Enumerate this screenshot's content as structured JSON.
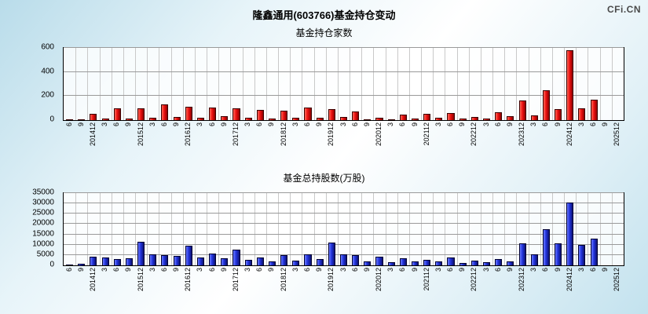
{
  "page": {
    "title": "隆鑫通用(603766)基金持仓变动",
    "logo": "CFi.CN"
  },
  "chart_data": [
    {
      "type": "bar",
      "title": "基金持仓家数",
      "xlabel": "",
      "ylabel": "",
      "ylim": [
        0,
        600
      ],
      "yticks": [
        0,
        200,
        400,
        600
      ],
      "grid": true,
      "legend": false,
      "bar_color": "#ee1111",
      "bar_color_light": "#ff6a5a",
      "bar_color_dark": "#8e0000",
      "bar_edge": "#3a0000",
      "categories": [
        "6",
        "9",
        "201412",
        "3",
        "6",
        "9",
        "201512",
        "3",
        "6",
        "9",
        "201612",
        "3",
        "6",
        "9",
        "201712",
        "3",
        "6",
        "9",
        "201812",
        "3",
        "6",
        "9",
        "201912",
        "3",
        "6",
        "9",
        "202012",
        "3",
        "6",
        "9",
        "202112",
        "3",
        "6",
        "9",
        "202212",
        "3",
        "6",
        "9",
        "202312",
        "3",
        "6",
        "9",
        "202412",
        "3",
        "6",
        "9",
        "202512"
      ],
      "values": [
        8,
        4,
        50,
        12,
        100,
        15,
        95,
        20,
        130,
        25,
        110,
        20,
        105,
        30,
        95,
        18,
        85,
        12,
        80,
        22,
        105,
        22,
        90,
        28,
        70,
        8,
        18,
        6,
        45,
        10,
        55,
        22,
        60,
        10,
        25,
        15,
        65,
        30,
        160,
        40,
        250,
        90,
        580,
        95,
        170,
        0,
        0
      ]
    },
    {
      "type": "bar",
      "title": "基金总持股数(万股)",
      "xlabel": "",
      "ylabel": "",
      "ylim": [
        0,
        35000
      ],
      "yticks": [
        0,
        5000,
        10000,
        15000,
        20000,
        25000,
        30000,
        35000
      ],
      "grid": true,
      "legend": false,
      "bar_color": "#2233dd",
      "bar_color_light": "#6b7bff",
      "bar_color_dark": "#0d1270",
      "bar_edge": "#000030",
      "categories": [
        "6",
        "9",
        "201412",
        "3",
        "6",
        "9",
        "201512",
        "3",
        "6",
        "9",
        "201612",
        "3",
        "6",
        "9",
        "201712",
        "3",
        "6",
        "9",
        "201812",
        "3",
        "6",
        "9",
        "201912",
        "3",
        "6",
        "9",
        "202012",
        "3",
        "6",
        "9",
        "202112",
        "3",
        "6",
        "9",
        "202212",
        "3",
        "6",
        "9",
        "202312",
        "3",
        "6",
        "9",
        "202412",
        "3",
        "6",
        "9",
        "202512"
      ],
      "values": [
        400,
        600,
        4200,
        4000,
        3000,
        3500,
        11500,
        5500,
        5000,
        4500,
        9500,
        4000,
        5800,
        3500,
        7800,
        2500,
        3800,
        2000,
        4800,
        2200,
        5500,
        3200,
        11000,
        5200,
        4800,
        2000,
        4200,
        1500,
        3500,
        1800,
        2800,
        2000,
        3800,
        1200,
        2200,
        1500,
        3000,
        1800,
        10800,
        5500,
        17500,
        10500,
        30500,
        10000,
        13000,
        0,
        0
      ]
    }
  ]
}
